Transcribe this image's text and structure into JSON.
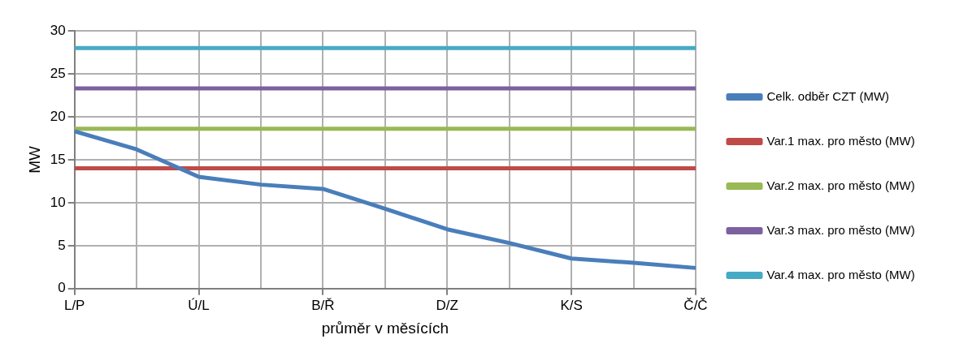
{
  "chart_data": {
    "type": "line",
    "xlabel": "průměr v měsících",
    "ylabel": "MW",
    "categories": [
      "L/P",
      null,
      "Ú/L",
      null,
      "B/Ř",
      null,
      "D/Z",
      null,
      "K/S",
      null,
      "Č/Č"
    ],
    "series": [
      {
        "name": "Celk. odběr CZT (MW)",
        "color": "#4a7ebb",
        "values": [
          18.3,
          16.2,
          13.0,
          12.1,
          11.6,
          9.3,
          6.9,
          5.3,
          3.5,
          3.0,
          2.4
        ]
      },
      {
        "name": "Var.1 max. pro město (MW)",
        "color": "#be4b48",
        "values": [
          14,
          14,
          14,
          14,
          14,
          14,
          14,
          14,
          14,
          14,
          14
        ]
      },
      {
        "name": "Var.2 max. pro město (MW)",
        "color": "#98b954",
        "values": [
          18.6,
          18.6,
          18.6,
          18.6,
          18.6,
          18.6,
          18.6,
          18.6,
          18.6,
          18.6,
          18.6
        ]
      },
      {
        "name": "Var.3 max. pro město (MW)",
        "color": "#7d60a0",
        "values": [
          23.3,
          23.3,
          23.3,
          23.3,
          23.3,
          23.3,
          23.3,
          23.3,
          23.3,
          23.3,
          23.3
        ]
      },
      {
        "name": "Var.4 max. pro město (MW)",
        "color": "#46aac5",
        "values": [
          28,
          28,
          28,
          28,
          28,
          28,
          28,
          28,
          28,
          28,
          28
        ]
      }
    ],
    "ylim": [
      0,
      30
    ],
    "yticks": [
      0,
      5,
      10,
      15,
      20,
      25,
      30
    ],
    "grid": true,
    "legend": "right",
    "marker": "none",
    "line_style": "solid"
  }
}
